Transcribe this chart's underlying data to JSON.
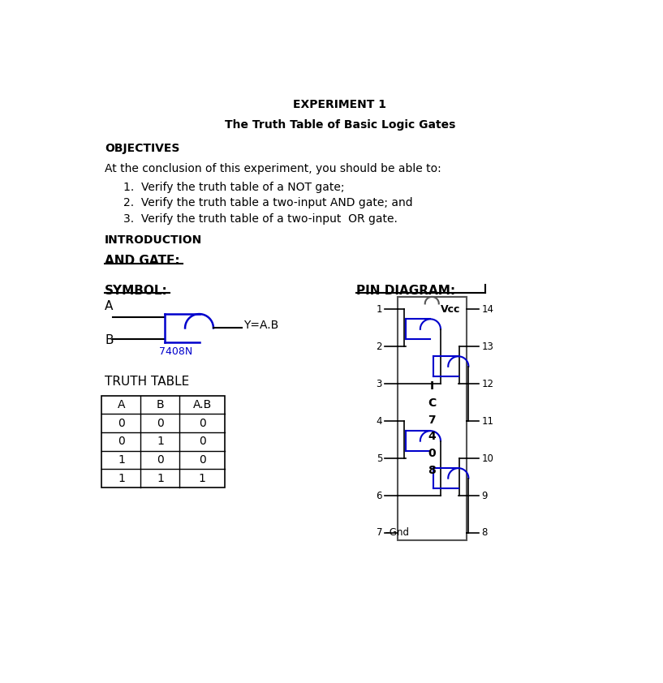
{
  "title": "EXPERIMENT 1",
  "subtitle": "The Truth Table of Basic Logic Gates",
  "objectives_header": "OBJECTIVES",
  "objectives_intro": "At the conclusion of this experiment, you should be able to:",
  "objectives": [
    "Verify the truth table of a NOT gate;",
    "Verify the truth table a two-input AND gate; and",
    "Verify the truth table of a two-input  OR gate."
  ],
  "introduction_header": "INTRODUCTION",
  "and_gate_header": "AND GATE:",
  "symbol_header": "SYMBOL:",
  "pin_diagram_header": "PIN DIAGRAM:",
  "truth_table_header": "TRUTH TABLE",
  "truth_table_cols": [
    "A",
    "B",
    "A.B"
  ],
  "truth_table_rows": [
    [
      "0",
      "0",
      "0"
    ],
    [
      "0",
      "1",
      "0"
    ],
    [
      "1",
      "0",
      "0"
    ],
    [
      "1",
      "1",
      "1"
    ]
  ],
  "gate_label": "7408N",
  "output_label": "Y=A.B",
  "bg_color": "#ffffff",
  "text_color": "#000000",
  "blue_color": "#0000cc",
  "ic_label_chars": [
    "I",
    "C",
    "7",
    "4",
    "0",
    "8"
  ]
}
